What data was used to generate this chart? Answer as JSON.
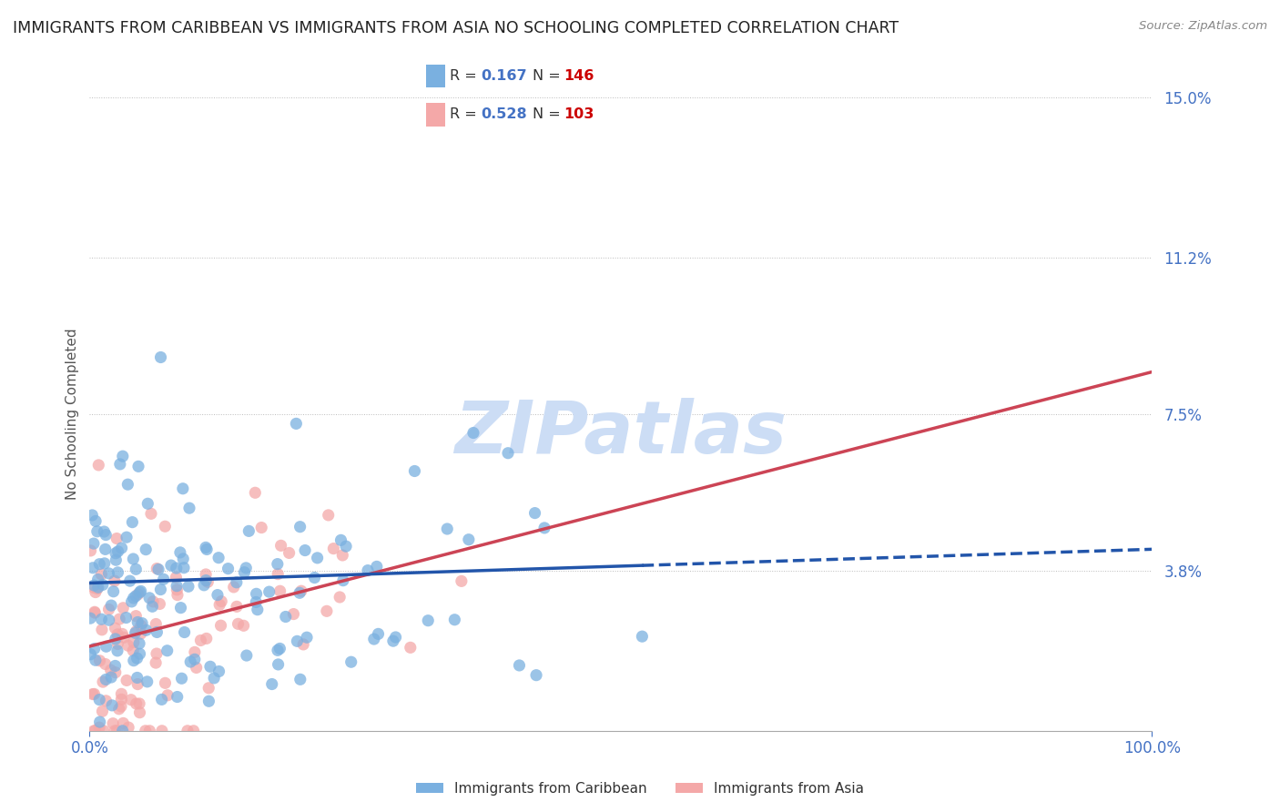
{
  "title": "IMMIGRANTS FROM CARIBBEAN VS IMMIGRANTS FROM ASIA NO SCHOOLING COMPLETED CORRELATION CHART",
  "source": "Source: ZipAtlas.com",
  "ylabel": "No Schooling Completed",
  "xlim": [
    0,
    100
  ],
  "ylim": [
    0,
    15.0
  ],
  "yticks": [
    0,
    3.8,
    7.5,
    11.2,
    15.0
  ],
  "ytick_labels": [
    "",
    "3.8%",
    "7.5%",
    "11.2%",
    "15.0%"
  ],
  "xticks": [
    0,
    100
  ],
  "xtick_labels": [
    "0.0%",
    "100.0%"
  ],
  "caribbean_R": 0.167,
  "caribbean_N": 146,
  "asia_R": 0.528,
  "asia_N": 103,
  "caribbean_color": "#7ab0e0",
  "asia_color": "#f4a8a8",
  "caribbean_line_color": "#2255aa",
  "asia_line_color": "#cc4455",
  "watermark": "ZIPatlas",
  "watermark_color": "#ccddf5",
  "legend_label_caribbean": "Immigrants from Caribbean",
  "legend_label_asia": "Immigrants from Asia",
  "background_color": "#ffffff",
  "grid_color": "#bbbbbb",
  "title_color": "#222222",
  "axis_label_color": "#555555",
  "tick_label_color": "#4472c4",
  "R_value_color": "#4472c4",
  "N_value_color": "#cc0000",
  "caribbean_max_x": 80,
  "asia_max_x": 35,
  "car_line_start_y": 3.5,
  "car_line_end_y": 4.3,
  "asia_line_start_y": 2.0,
  "asia_line_end_y": 8.5
}
